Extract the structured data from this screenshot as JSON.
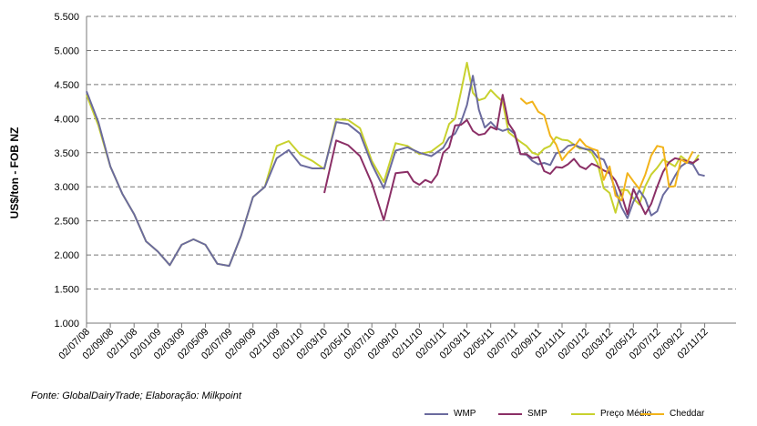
{
  "chart_data": {
    "type": "line",
    "ylabel": "US$/ton - FOB NZ",
    "xlabel": "",
    "ylim": [
      1000,
      5500
    ],
    "yticks": [
      "1.000",
      "1.500",
      "2.000",
      "2.500",
      "3.000",
      "3.500",
      "4.000",
      "4.500",
      "5.000",
      "5.500"
    ],
    "xtick_labels": [
      "02/07/08",
      "02/09/08",
      "02/11/08",
      "02/01/09",
      "02/03/09",
      "02/05/09",
      "02/07/09",
      "02/09/09",
      "02/11/09",
      "02/01/10",
      "02/03/10",
      "02/05/10",
      "02/07/10",
      "02/09/10",
      "02/11/10",
      "02/01/11",
      "02/03/11",
      "02/05/11",
      "02/07/11",
      "02/09/11",
      "02/11/11",
      "02/01/12",
      "02/03/12",
      "02/05/12",
      "02/07/12",
      "02/09/12",
      "02/11/12"
    ],
    "grid": "horizontal dashed",
    "legend_position": "bottom-right",
    "source_text": "Fonte: GlobalDairyTrade;  Elaboração: Milkpoint",
    "series": [
      {
        "name": "WMP",
        "color": "#6b6b9e",
        "points": [
          [
            0,
            4400
          ],
          [
            0.5,
            3950
          ],
          [
            1,
            3300
          ],
          [
            1.5,
            2900
          ],
          [
            2,
            2600
          ],
          [
            2.5,
            2200
          ],
          [
            3,
            2050
          ],
          [
            3.5,
            1850
          ],
          [
            4,
            2150
          ],
          [
            4.5,
            2230
          ],
          [
            5,
            2150
          ],
          [
            5.5,
            1870
          ],
          [
            6,
            1840
          ],
          [
            6.5,
            2280
          ],
          [
            7,
            2850
          ],
          [
            7.5,
            3000
          ],
          [
            8,
            3420
          ],
          [
            8.5,
            3540
          ],
          [
            9,
            3320
          ],
          [
            9.5,
            3270
          ],
          [
            10,
            3270
          ],
          [
            10.5,
            3950
          ],
          [
            11,
            3920
          ],
          [
            11.5,
            3780
          ],
          [
            12,
            3330
          ],
          [
            12.5,
            2980
          ],
          [
            13,
            3530
          ],
          [
            13.5,
            3580
          ],
          [
            14,
            3500
          ],
          [
            14.5,
            3450
          ],
          [
            15,
            3570
          ],
          [
            15.25,
            3720
          ],
          [
            15.5,
            3780
          ],
          [
            15.75,
            3950
          ],
          [
            16,
            4200
          ],
          [
            16.25,
            4630
          ],
          [
            16.5,
            4130
          ],
          [
            16.75,
            3870
          ],
          [
            17,
            3950
          ],
          [
            17.25,
            3860
          ],
          [
            17.5,
            3820
          ],
          [
            17.75,
            3850
          ],
          [
            18,
            3780
          ],
          [
            18.25,
            3480
          ],
          [
            18.5,
            3470
          ],
          [
            18.75,
            3380
          ],
          [
            19,
            3330
          ],
          [
            19.25,
            3350
          ],
          [
            19.5,
            3320
          ],
          [
            19.75,
            3490
          ],
          [
            20,
            3520
          ],
          [
            20.25,
            3600
          ],
          [
            20.5,
            3620
          ],
          [
            20.75,
            3580
          ],
          [
            21,
            3550
          ],
          [
            21.25,
            3540
          ],
          [
            21.5,
            3430
          ],
          [
            21.75,
            3400
          ],
          [
            22,
            3200
          ],
          [
            22.25,
            2950
          ],
          [
            22.5,
            2700
          ],
          [
            22.75,
            2540
          ],
          [
            23,
            2780
          ],
          [
            23.25,
            2950
          ],
          [
            23.5,
            2820
          ],
          [
            23.75,
            2580
          ],
          [
            24,
            2640
          ],
          [
            24.25,
            2880
          ],
          [
            24.5,
            3000
          ],
          [
            24.75,
            3160
          ],
          [
            25,
            3300
          ],
          [
            25.25,
            3360
          ],
          [
            25.5,
            3330
          ],
          [
            25.75,
            3180
          ],
          [
            26,
            3160
          ]
        ]
      },
      {
        "name": "SMP",
        "color": "#8b2f66",
        "points": [
          [
            10,
            2910
          ],
          [
            10.5,
            3680
          ],
          [
            11,
            3610
          ],
          [
            11.5,
            3450
          ],
          [
            12,
            3050
          ],
          [
            12.5,
            2510
          ],
          [
            13,
            3200
          ],
          [
            13.5,
            3220
          ],
          [
            13.75,
            3080
          ],
          [
            14,
            3030
          ],
          [
            14.25,
            3100
          ],
          [
            14.5,
            3060
          ],
          [
            14.75,
            3180
          ],
          [
            15,
            3500
          ],
          [
            15.25,
            3580
          ],
          [
            15.5,
            3900
          ],
          [
            15.75,
            3910
          ],
          [
            16,
            3980
          ],
          [
            16.25,
            3820
          ],
          [
            16.5,
            3760
          ],
          [
            16.75,
            3780
          ],
          [
            17,
            3880
          ],
          [
            17.25,
            3840
          ],
          [
            17.5,
            4350
          ],
          [
            17.75,
            3930
          ],
          [
            18,
            3800
          ],
          [
            18.25,
            3480
          ],
          [
            18.5,
            3480
          ],
          [
            18.75,
            3420
          ],
          [
            19,
            3440
          ],
          [
            19.25,
            3230
          ],
          [
            19.5,
            3190
          ],
          [
            19.75,
            3290
          ],
          [
            20,
            3280
          ],
          [
            20.25,
            3330
          ],
          [
            20.5,
            3410
          ],
          [
            20.75,
            3300
          ],
          [
            21,
            3260
          ],
          [
            21.25,
            3340
          ],
          [
            21.5,
            3300
          ],
          [
            21.75,
            3240
          ],
          [
            22,
            3200
          ],
          [
            22.25,
            3090
          ],
          [
            22.5,
            2880
          ],
          [
            22.75,
            2600
          ],
          [
            23,
            2970
          ],
          [
            23.25,
            2780
          ],
          [
            23.5,
            2600
          ],
          [
            23.75,
            2750
          ],
          [
            24,
            3000
          ],
          [
            24.25,
            3220
          ],
          [
            24.5,
            3360
          ],
          [
            24.75,
            3420
          ],
          [
            25,
            3400
          ],
          [
            25.25,
            3380
          ],
          [
            25.5,
            3350
          ],
          [
            25.75,
            3410
          ]
        ]
      },
      {
        "name": "Preço Médio",
        "color": "#c8d12e",
        "points": [
          [
            0,
            4350
          ],
          [
            0.5,
            3900
          ],
          [
            1,
            3300
          ],
          [
            1.5,
            2900
          ],
          [
            2,
            2600
          ],
          [
            2.5,
            2200
          ],
          [
            3,
            2050
          ],
          [
            3.5,
            1850
          ],
          [
            4,
            2150
          ],
          [
            4.5,
            2230
          ],
          [
            5,
            2150
          ],
          [
            5.5,
            1870
          ],
          [
            6,
            1840
          ],
          [
            6.5,
            2280
          ],
          [
            7,
            2850
          ],
          [
            7.5,
            3000
          ],
          [
            8,
            3600
          ],
          [
            8.5,
            3670
          ],
          [
            9,
            3470
          ],
          [
            9.5,
            3380
          ],
          [
            10,
            3260
          ],
          [
            10.5,
            3990
          ],
          [
            11,
            3980
          ],
          [
            11.5,
            3860
          ],
          [
            12,
            3380
          ],
          [
            12.5,
            3070
          ],
          [
            13,
            3640
          ],
          [
            13.5,
            3600
          ],
          [
            14,
            3480
          ],
          [
            14.5,
            3520
          ],
          [
            15,
            3650
          ],
          [
            15.25,
            3920
          ],
          [
            15.5,
            4000
          ],
          [
            15.75,
            4400
          ],
          [
            16,
            4820
          ],
          [
            16.25,
            4380
          ],
          [
            16.5,
            4270
          ],
          [
            16.75,
            4300
          ],
          [
            17,
            4420
          ],
          [
            17.25,
            4330
          ],
          [
            17.5,
            4250
          ],
          [
            17.75,
            3800
          ],
          [
            18,
            3730
          ],
          [
            18.25,
            3660
          ],
          [
            18.5,
            3600
          ],
          [
            18.75,
            3500
          ],
          [
            19,
            3470
          ],
          [
            19.25,
            3560
          ],
          [
            19.5,
            3600
          ],
          [
            19.75,
            3730
          ],
          [
            20,
            3690
          ],
          [
            20.25,
            3680
          ],
          [
            20.5,
            3620
          ],
          [
            20.75,
            3560
          ],
          [
            21,
            3560
          ],
          [
            21.25,
            3500
          ],
          [
            21.5,
            3340
          ],
          [
            21.75,
            2980
          ],
          [
            22,
            2910
          ],
          [
            22.25,
            2620
          ],
          [
            22.5,
            2960
          ],
          [
            22.75,
            2950
          ],
          [
            23,
            2830
          ],
          [
            23.25,
            2740
          ],
          [
            23.5,
            3010
          ],
          [
            23.75,
            3180
          ],
          [
            24,
            3280
          ],
          [
            24.25,
            3400
          ],
          [
            24.5,
            3350
          ],
          [
            24.75,
            3300
          ],
          [
            25,
            3450
          ],
          [
            25.25,
            3380
          ],
          [
            25.5,
            3330
          ],
          [
            25.75,
            3470
          ]
        ]
      },
      {
        "name": "Cheddar",
        "color": "#f2b31a",
        "points": [
          [
            18.25,
            4300
          ],
          [
            18.5,
            4220
          ],
          [
            18.75,
            4250
          ],
          [
            19,
            4100
          ],
          [
            19.25,
            4050
          ],
          [
            19.5,
            3750
          ],
          [
            19.75,
            3620
          ],
          [
            20,
            3390
          ],
          [
            20.25,
            3500
          ],
          [
            20.5,
            3580
          ],
          [
            20.75,
            3700
          ],
          [
            21,
            3600
          ],
          [
            21.25,
            3560
          ],
          [
            21.5,
            3530
          ],
          [
            21.75,
            3100
          ],
          [
            22,
            3300
          ],
          [
            22.25,
            2870
          ],
          [
            22.5,
            2800
          ],
          [
            22.75,
            3200
          ],
          [
            23,
            3080
          ],
          [
            23.25,
            2970
          ],
          [
            23.5,
            3180
          ],
          [
            23.75,
            3460
          ],
          [
            24,
            3600
          ],
          [
            24.25,
            3580
          ],
          [
            24.5,
            3000
          ],
          [
            24.75,
            3010
          ],
          [
            25,
            3400
          ],
          [
            25.25,
            3350
          ],
          [
            25.5,
            3520
          ]
        ]
      }
    ]
  }
}
